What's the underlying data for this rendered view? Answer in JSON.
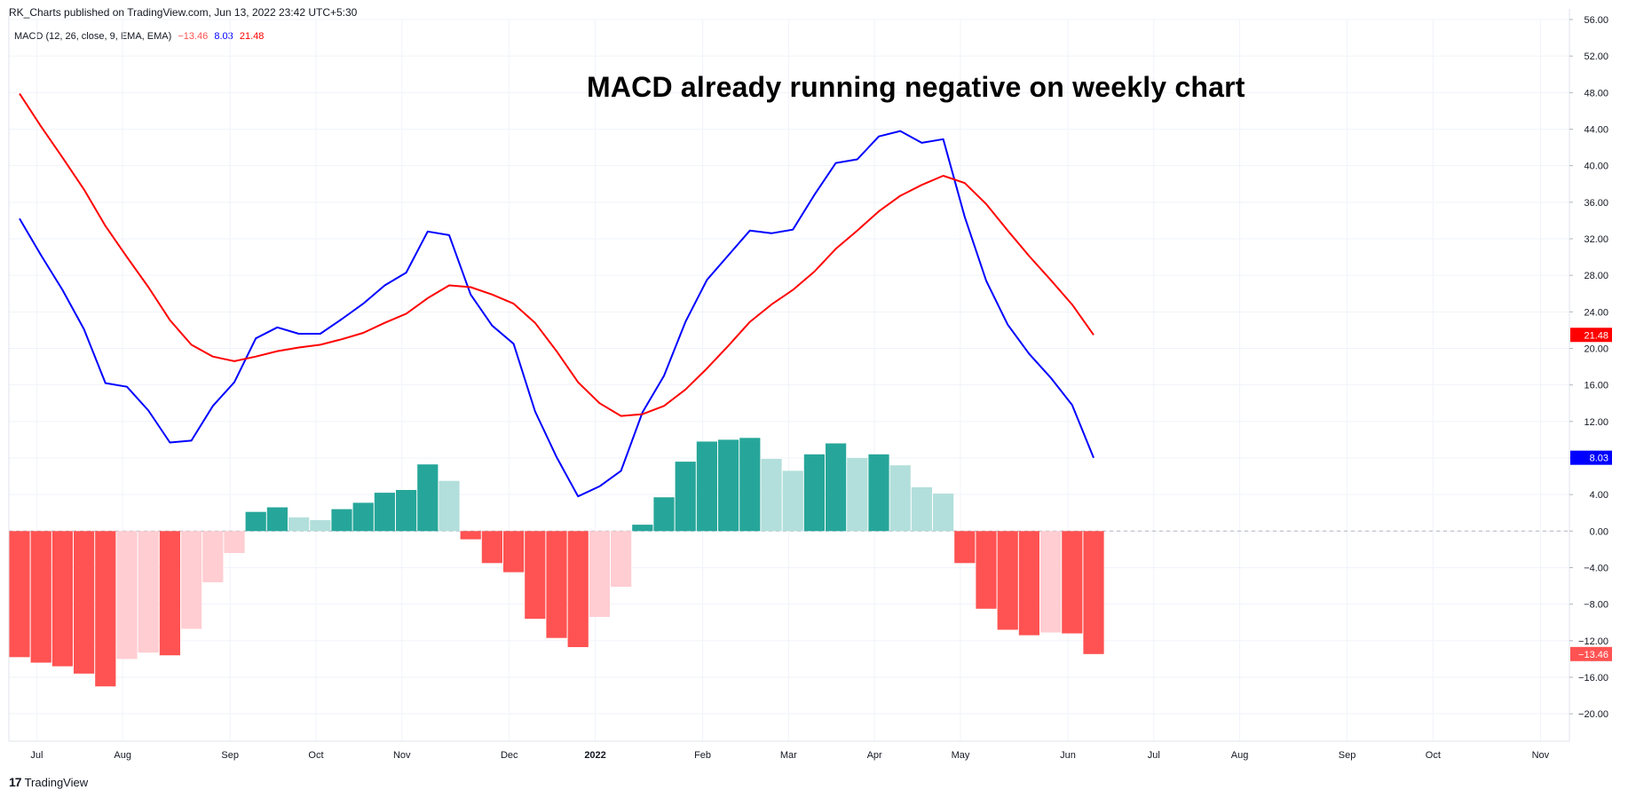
{
  "header": {
    "published": "RK_Charts published on TradingView.com, Jun 13, 2022 23:42 UTC+5:30"
  },
  "legend": {
    "label": "MACD (12, 26, close, 9, EMA, EMA)",
    "hist_value": "−13.46",
    "macd_value": "8.03",
    "signal_value": "21.48"
  },
  "colors": {
    "macd": "#0000ff",
    "signal": "#ff0000",
    "hist_pos_strong": "#26a69a",
    "hist_pos_weak": "#b2dfdb",
    "hist_neg_strong": "#ff5252",
    "hist_neg_weak": "#ffcdd2",
    "grid": "#f0f3fa"
  },
  "footer": {
    "logo": "17",
    "brand": "TradingView"
  },
  "chart_data": {
    "type": "line",
    "title": "MACD already running negative on weekly chart",
    "ylim": [
      -23.0,
      56.0
    ],
    "y_ticks": [
      {
        "value": 56,
        "label": "56.00"
      },
      {
        "value": 52,
        "label": "52.00"
      },
      {
        "value": 48,
        "label": "48.00"
      },
      {
        "value": 44,
        "label": "44.00"
      },
      {
        "value": 40,
        "label": "40.00"
      },
      {
        "value": 36,
        "label": "36.00"
      },
      {
        "value": 32,
        "label": "32.00"
      },
      {
        "value": 28,
        "label": "28.00"
      },
      {
        "value": 24,
        "label": "24.00"
      },
      {
        "value": 20,
        "label": "20.00"
      },
      {
        "value": 16,
        "label": "16.00"
      },
      {
        "value": 12,
        "label": "12.00"
      },
      {
        "value": 8,
        "label": "8.00"
      },
      {
        "value": 4,
        "label": "4.00"
      },
      {
        "value": 0,
        "label": "0.00"
      },
      {
        "value": -4,
        "label": "−4.00"
      },
      {
        "value": -8,
        "label": "−8.00"
      },
      {
        "value": -12,
        "label": "−12.00"
      },
      {
        "value": -16,
        "label": "−16.00"
      },
      {
        "value": -20,
        "label": "−20.00"
      }
    ],
    "x_ticks": [
      {
        "week": 0.8,
        "label": "Jul"
      },
      {
        "week": 4.8,
        "label": "Aug"
      },
      {
        "week": 9.8,
        "label": "Sep"
      },
      {
        "week": 13.8,
        "label": "Oct"
      },
      {
        "week": 17.8,
        "label": "Nov"
      },
      {
        "week": 22.8,
        "label": "Dec"
      },
      {
        "week": 26.8,
        "label": "2022",
        "bold": true
      },
      {
        "week": 31.8,
        "label": "Feb"
      },
      {
        "week": 35.8,
        "label": "Mar"
      },
      {
        "week": 39.8,
        "label": "Apr"
      },
      {
        "week": 43.8,
        "label": "May"
      },
      {
        "week": 48.8,
        "label": "Jun"
      },
      {
        "week": 52.8,
        "label": "Jul"
      },
      {
        "week": 56.8,
        "label": "Aug"
      },
      {
        "week": 61.8,
        "label": "Sep"
      },
      {
        "week": 65.8,
        "label": "Oct"
      },
      {
        "week": 70.8,
        "label": "Nov"
      }
    ],
    "x_range_weeks": [
      0,
      73
    ],
    "histogram": [
      {
        "week": 0,
        "value": -13.8,
        "shade": "strong"
      },
      {
        "week": 1,
        "value": -14.4,
        "shade": "strong"
      },
      {
        "week": 2,
        "value": -14.8,
        "shade": "strong"
      },
      {
        "week": 3,
        "value": -15.6,
        "shade": "strong"
      },
      {
        "week": 4,
        "value": -17.0,
        "shade": "strong"
      },
      {
        "week": 5,
        "value": -14.0,
        "shade": "weak"
      },
      {
        "week": 6,
        "value": -13.3,
        "shade": "weak"
      },
      {
        "week": 7,
        "value": -13.6,
        "shade": "strong"
      },
      {
        "week": 8,
        "value": -10.7,
        "shade": "weak"
      },
      {
        "week": 9,
        "value": -5.6,
        "shade": "weak"
      },
      {
        "week": 10,
        "value": -2.4,
        "shade": "weak"
      },
      {
        "week": 11,
        "value": 2.1,
        "shade": "strong"
      },
      {
        "week": 12,
        "value": 2.6,
        "shade": "strong"
      },
      {
        "week": 13,
        "value": 1.5,
        "shade": "weak"
      },
      {
        "week": 14,
        "value": 1.2,
        "shade": "weak"
      },
      {
        "week": 15,
        "value": 2.4,
        "shade": "strong"
      },
      {
        "week": 16,
        "value": 3.1,
        "shade": "strong"
      },
      {
        "week": 17,
        "value": 4.2,
        "shade": "strong"
      },
      {
        "week": 18,
        "value": 4.5,
        "shade": "strong"
      },
      {
        "week": 19,
        "value": 7.3,
        "shade": "strong"
      },
      {
        "week": 20,
        "value": 5.5,
        "shade": "weak"
      },
      {
        "week": 21,
        "value": -0.9,
        "shade": "strong"
      },
      {
        "week": 22,
        "value": -3.5,
        "shade": "strong"
      },
      {
        "week": 23,
        "value": -4.5,
        "shade": "strong"
      },
      {
        "week": 24,
        "value": -9.6,
        "shade": "strong"
      },
      {
        "week": 25,
        "value": -11.7,
        "shade": "strong"
      },
      {
        "week": 26,
        "value": -12.7,
        "shade": "strong"
      },
      {
        "week": 27,
        "value": -9.4,
        "shade": "weak"
      },
      {
        "week": 28,
        "value": -6.1,
        "shade": "weak"
      },
      {
        "week": 29,
        "value": 0.7,
        "shade": "strong"
      },
      {
        "week": 30,
        "value": 3.7,
        "shade": "strong"
      },
      {
        "week": 31,
        "value": 7.6,
        "shade": "strong"
      },
      {
        "week": 32,
        "value": 9.8,
        "shade": "strong"
      },
      {
        "week": 33,
        "value": 10.0,
        "shade": "strong"
      },
      {
        "week": 34,
        "value": 10.2,
        "shade": "strong"
      },
      {
        "week": 35,
        "value": 7.9,
        "shade": "weak"
      },
      {
        "week": 36,
        "value": 6.6,
        "shade": "weak"
      },
      {
        "week": 37,
        "value": 8.4,
        "shade": "strong"
      },
      {
        "week": 38,
        "value": 9.6,
        "shade": "strong"
      },
      {
        "week": 39,
        "value": 8.0,
        "shade": "weak"
      },
      {
        "week": 40,
        "value": 8.4,
        "shade": "strong"
      },
      {
        "week": 41,
        "value": 7.2,
        "shade": "weak"
      },
      {
        "week": 42,
        "value": 4.8,
        "shade": "weak"
      },
      {
        "week": 43,
        "value": 4.1,
        "shade": "weak"
      },
      {
        "week": 44,
        "value": -3.5,
        "shade": "strong"
      },
      {
        "week": 45,
        "value": -8.5,
        "shade": "strong"
      },
      {
        "week": 46,
        "value": -10.8,
        "shade": "strong"
      },
      {
        "week": 47,
        "value": -11.4,
        "shade": "strong"
      },
      {
        "week": 48,
        "value": -11.1,
        "shade": "weak"
      },
      {
        "week": 49,
        "value": -11.2,
        "shade": "strong"
      },
      {
        "week": 50,
        "value": -13.46,
        "shade": "strong"
      }
    ],
    "series": [
      {
        "name": "MACD",
        "values": [
          34.2,
          30.2,
          26.4,
          22.1,
          16.2,
          15.8,
          13.2,
          9.7,
          9.9,
          13.7,
          16.3,
          21.1,
          22.3,
          21.6,
          21.6,
          23.2,
          24.9,
          26.9,
          28.3,
          32.8,
          32.4,
          25.9,
          22.5,
          20.5,
          13.1,
          8.1,
          3.8,
          4.9,
          6.6,
          13.0,
          17.0,
          22.9,
          27.5,
          30.2,
          32.9,
          32.6,
          33.0,
          36.8,
          40.3,
          40.7,
          43.2,
          43.8,
          42.5,
          42.9,
          34.4,
          27.4,
          22.6,
          19.4,
          16.8,
          13.8,
          8.03
        ]
      },
      {
        "name": "Signal",
        "values": [
          47.9,
          44.3,
          40.9,
          37.4,
          33.4,
          30.0,
          26.7,
          23.1,
          20.4,
          19.1,
          18.6,
          19.1,
          19.7,
          20.1,
          20.4,
          21.0,
          21.7,
          22.8,
          23.8,
          25.5,
          26.9,
          26.7,
          25.9,
          24.9,
          22.8,
          19.7,
          16.3,
          14.0,
          12.6,
          12.8,
          13.7,
          15.5,
          17.8,
          20.3,
          22.9,
          24.8,
          26.4,
          28.4,
          30.9,
          32.9,
          35.0,
          36.7,
          37.9,
          38.9,
          38.1,
          35.8,
          32.9,
          30.1,
          27.5,
          24.8,
          21.48
        ]
      }
    ],
    "last_value_labels": [
      {
        "series": "Signal",
        "value": 21.48,
        "text": "21.48",
        "color": "#ff0000"
      },
      {
        "series": "MACD",
        "value": 8.03,
        "text": "8.03",
        "color": "#0000ff"
      },
      {
        "series": "Histogram",
        "value": -13.46,
        "text": "−13.46",
        "color": "#ff5252"
      }
    ]
  }
}
